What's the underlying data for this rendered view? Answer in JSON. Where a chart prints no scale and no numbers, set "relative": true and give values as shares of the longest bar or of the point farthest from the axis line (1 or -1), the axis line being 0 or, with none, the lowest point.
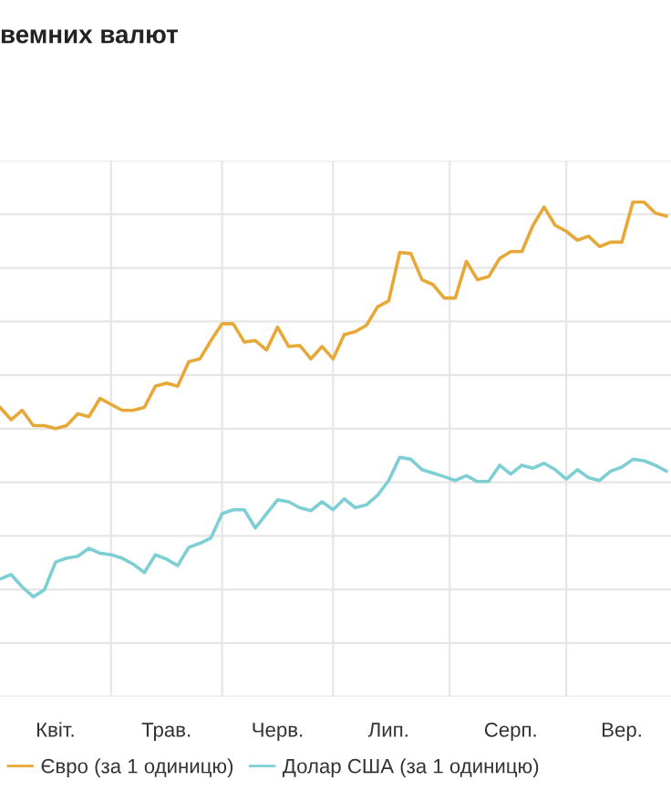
{
  "chart_data": {
    "type": "line",
    "title": "вемних валют",
    "relative": true,
    "grid": true,
    "legend": "bottom",
    "marker": "none",
    "line_style": "solid",
    "categories": [
      null,
      null,
      null,
      null,
      null,
      "Квіт.",
      null,
      null,
      null,
      null,
      null,
      null,
      null,
      null,
      null,
      "Трав.",
      null,
      null,
      null,
      null,
      null,
      null,
      null,
      null,
      null,
      "Черв.",
      null,
      null,
      null,
      null,
      null,
      null,
      null,
      null,
      null,
      "Лип.",
      null,
      null,
      null,
      null,
      null,
      null,
      null,
      null,
      null,
      null,
      "Серп.",
      null,
      null,
      null,
      null,
      null,
      null,
      null,
      null,
      null,
      "Вер.",
      null,
      null,
      null,
      null
    ],
    "series": [
      {
        "name": "Євро (за 1 одиницю)",
        "color": "#e8a838",
        "values": [
          0.585,
          0.56,
          0.579,
          0.548,
          0.548,
          0.542,
          0.548,
          0.572,
          0.566,
          0.603,
          0.591,
          0.579,
          0.579,
          0.585,
          0.628,
          0.634,
          0.628,
          0.677,
          0.683,
          0.72,
          0.754,
          0.754,
          0.717,
          0.72,
          0.701,
          0.747,
          0.708,
          0.71,
          0.683,
          0.708,
          0.683,
          0.732,
          0.738,
          0.751,
          0.788,
          0.8,
          0.898,
          0.896,
          0.843,
          0.833,
          0.806,
          0.806,
          0.88,
          0.843,
          0.849,
          0.886,
          0.9,
          0.9,
          0.953,
          0.99,
          0.953,
          0.941,
          0.923,
          0.931,
          0.91,
          0.919,
          0.919,
          1.0,
          1.0,
          0.978,
          0.972
        ]
      },
      {
        "name": "Долар США (за 1 одиницю)",
        "color": "#7ecfd4",
        "values": [
          0.238,
          0.247,
          0.222,
          0.202,
          0.216,
          0.272,
          0.28,
          0.284,
          0.3,
          0.29,
          0.287,
          0.28,
          0.268,
          0.251,
          0.287,
          0.278,
          0.265,
          0.302,
          0.31,
          0.321,
          0.37,
          0.378,
          0.378,
          0.341,
          0.37,
          0.398,
          0.394,
          0.382,
          0.376,
          0.394,
          0.378,
          0.4,
          0.382,
          0.388,
          0.407,
          0.437,
          0.484,
          0.48,
          0.459,
          0.452,
          0.445,
          0.437,
          0.447,
          0.435,
          0.435,
          0.468,
          0.45,
          0.468,
          0.462,
          0.472,
          0.459,
          0.44,
          0.459,
          0.443,
          0.437,
          0.456,
          0.464,
          0.48,
          0.477,
          0.468,
          0.456
        ]
      }
    ]
  }
}
